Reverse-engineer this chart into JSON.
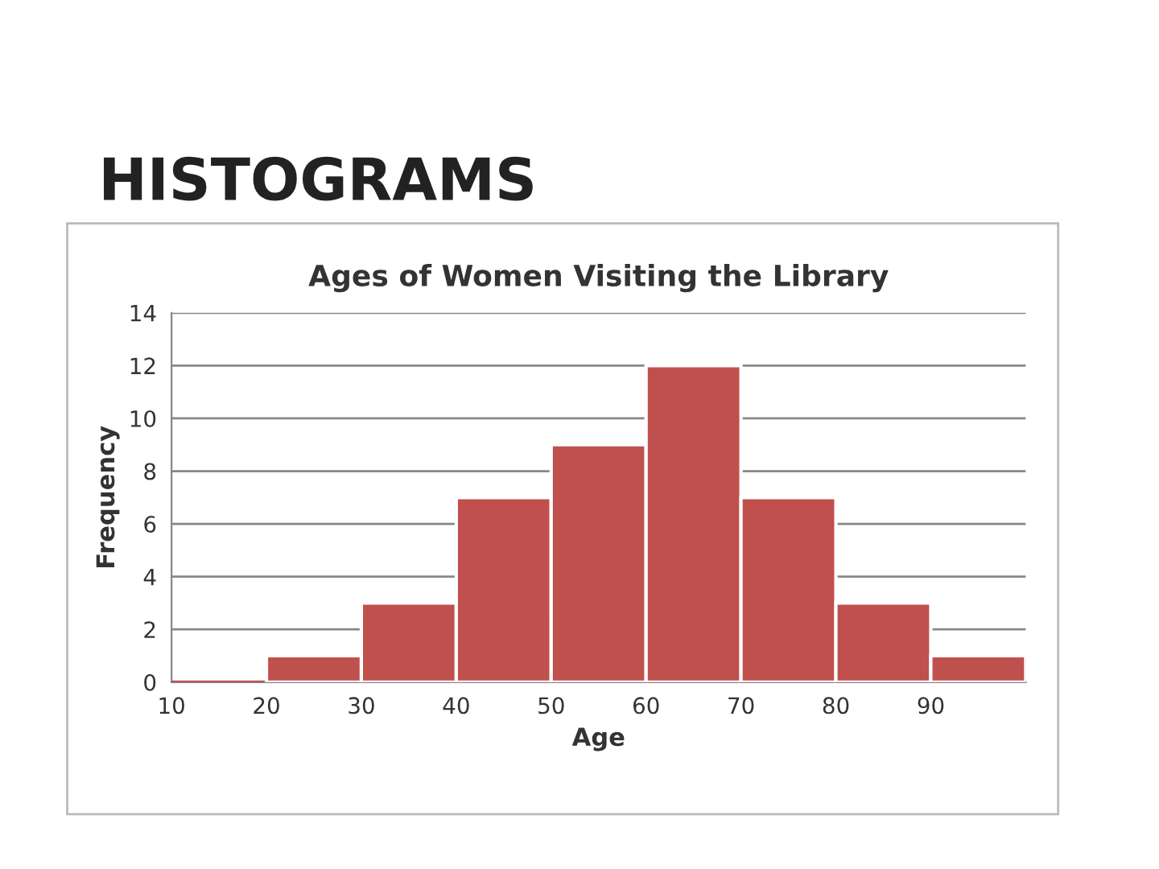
{
  "chart_data": {
    "type": "histogram",
    "title": "Ages of Women Visiting the Library",
    "xlabel": "Age",
    "ylabel": "Frequency",
    "annotations": [
      "HISTOGRAMS"
    ],
    "bins": [
      10,
      20,
      30,
      40,
      50,
      60,
      70,
      80,
      90,
      100
    ],
    "values": [
      0,
      1,
      3,
      7,
      9,
      12,
      7,
      3,
      1
    ],
    "color": "#c0504d",
    "xlim": [
      10,
      100
    ],
    "xticks": [
      10,
      20,
      30,
      40,
      50,
      60,
      70,
      80,
      90
    ],
    "ylim": [
      0,
      14
    ],
    "yticks": [
      0,
      2,
      4,
      6,
      8,
      10,
      12,
      14
    ],
    "grid": "y",
    "legend": false
  }
}
